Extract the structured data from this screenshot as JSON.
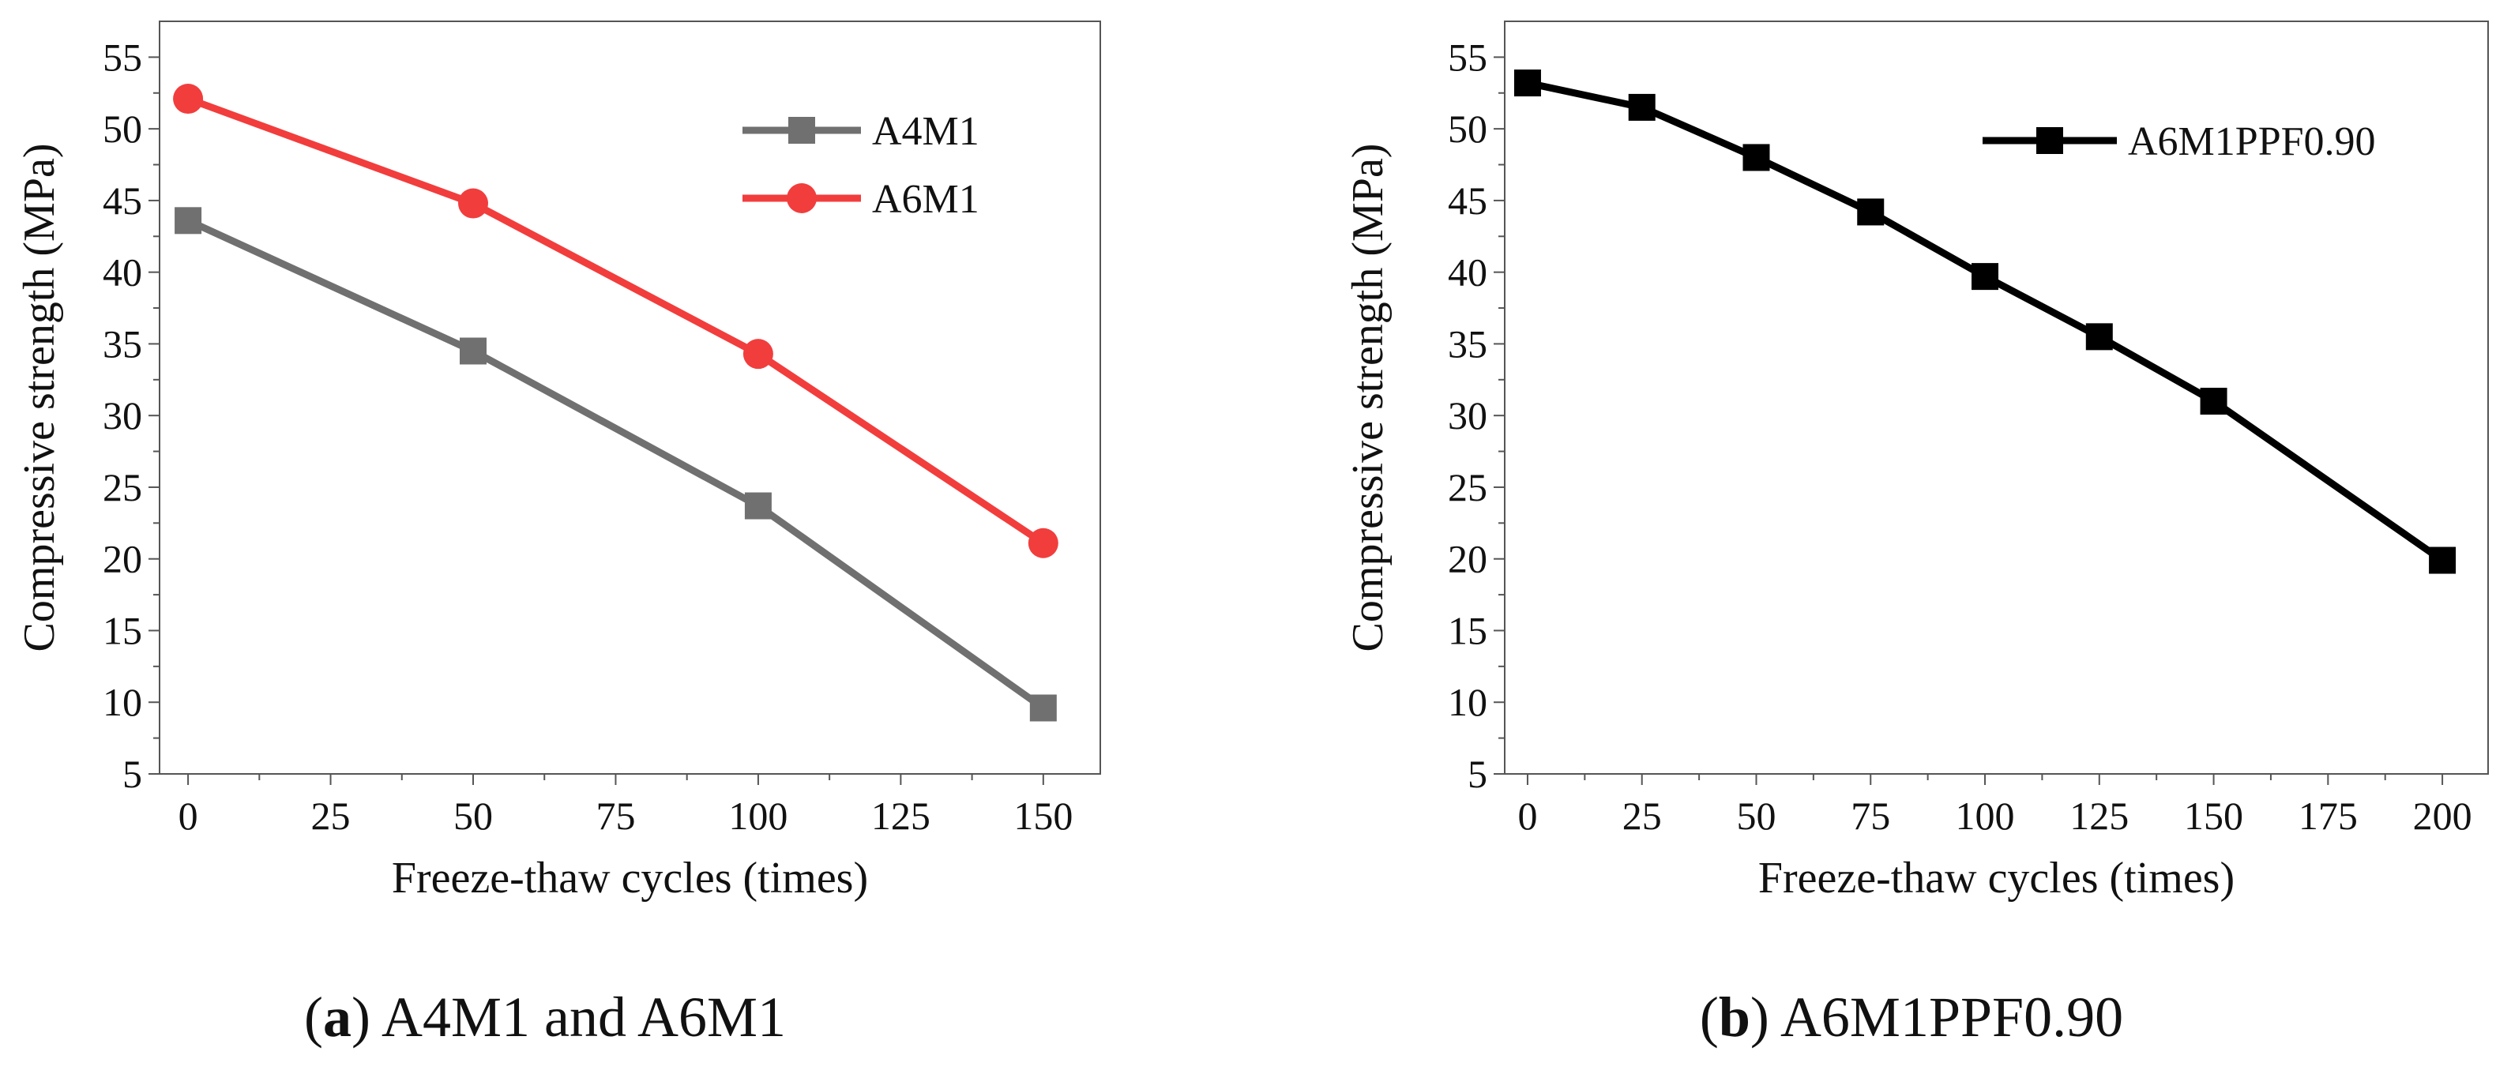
{
  "chart_data": [
    {
      "type": "line",
      "panel_label": "a",
      "caption": "A4M1 and A6M1",
      "xlabel": "Freeze-thaw cycles (times)",
      "ylabel": "Compressive strength (MPa)",
      "xlim": [
        -5,
        160
      ],
      "ylim": [
        5,
        57.5
      ],
      "xticks": [
        0,
        25,
        50,
        75,
        100,
        125,
        150
      ],
      "yticks": [
        5,
        10,
        15,
        20,
        25,
        30,
        35,
        40,
        45,
        50,
        55
      ],
      "legend_position": "top-right",
      "grid": false,
      "series": [
        {
          "name": "A4M1",
          "color": "#707070",
          "marker": "square",
          "x": [
            0,
            50,
            100,
            150
          ],
          "y": [
            43.6,
            34.5,
            23.7,
            9.6
          ]
        },
        {
          "name": "A6M1",
          "color": "#f23d3d",
          "marker": "circle",
          "x": [
            0,
            50,
            100,
            150
          ],
          "y": [
            52.1,
            44.8,
            34.3,
            21.1
          ]
        }
      ]
    },
    {
      "type": "line",
      "panel_label": "b",
      "caption": "A6M1PPF0.90",
      "xlabel": "Freeze-thaw cycles (times)",
      "ylabel": "Compressive strength (MPa)",
      "xlim": [
        -5,
        210
      ],
      "ylim": [
        5,
        57.5
      ],
      "xticks": [
        0,
        25,
        50,
        75,
        100,
        125,
        150,
        175,
        200
      ],
      "yticks": [
        5,
        10,
        15,
        20,
        25,
        30,
        35,
        40,
        45,
        50,
        55
      ],
      "legend_position": "top-right",
      "grid": false,
      "series": [
        {
          "name": "A6M1PPF0.90",
          "color": "#000000",
          "marker": "square",
          "x": [
            0,
            25,
            50,
            75,
            100,
            125,
            150,
            200
          ],
          "y": [
            53.2,
            51.5,
            48.0,
            44.2,
            39.7,
            35.5,
            31.0,
            19.9
          ]
        }
      ]
    }
  ]
}
